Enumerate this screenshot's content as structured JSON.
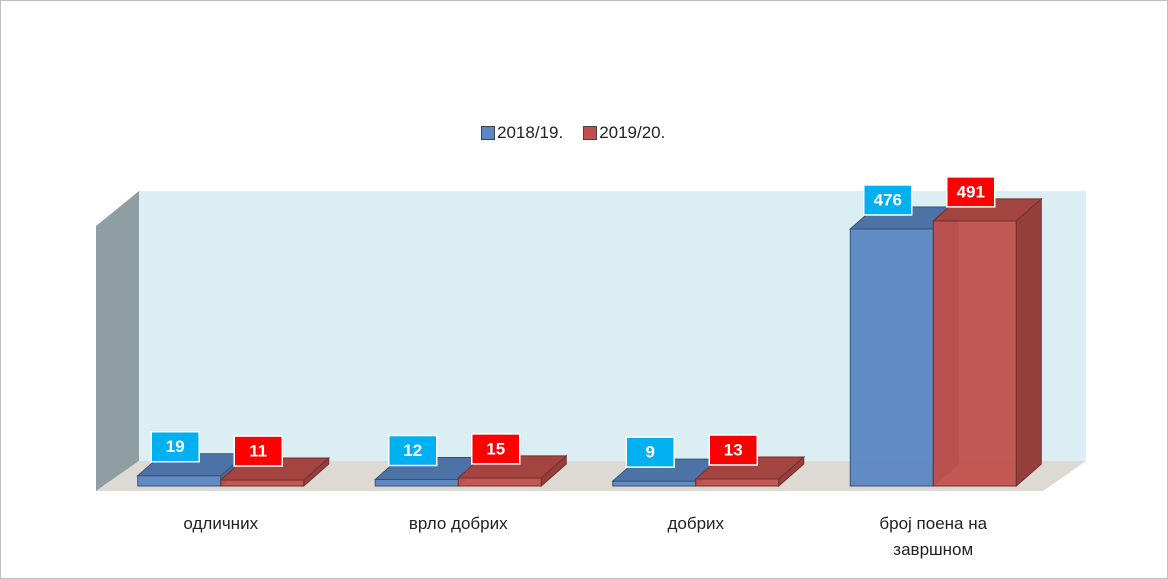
{
  "chart_data": {
    "type": "bar3d",
    "categories": [
      "одличних",
      "врло добрих",
      "добрих",
      "број поена на завршном"
    ],
    "series": [
      {
        "name": "2018/19.",
        "color": "#5b87c3",
        "label_color": "#00b0f0",
        "values": [
          19,
          12,
          9,
          476
        ]
      },
      {
        "name": "2019/20.",
        "color": "#c0504d",
        "label_color": "#ff0000",
        "values": [
          11,
          15,
          13,
          491
        ]
      }
    ],
    "ylim": [
      0,
      500
    ],
    "legend": "top",
    "grid": false
  }
}
